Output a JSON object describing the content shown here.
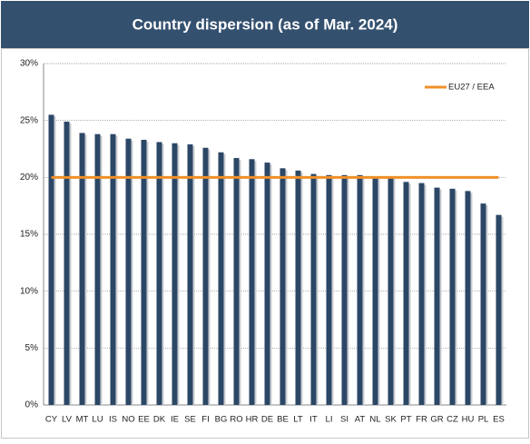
{
  "chart_data": {
    "type": "bar",
    "title": "Country dispersion (as of Mar. 2024)",
    "categories": [
      "CY",
      "LV",
      "MT",
      "LU",
      "IS",
      "NO",
      "EE",
      "DK",
      "IE",
      "SE",
      "FI",
      "BG",
      "RO",
      "HR",
      "DE",
      "BE",
      "LT",
      "IT",
      "LI",
      "SI",
      "AT",
      "NL",
      "SK",
      "PT",
      "FR",
      "GR",
      "CZ",
      "HU",
      "PL",
      "ES"
    ],
    "series": [
      {
        "name": null,
        "color": "#2c4766",
        "values": [
          25.5,
          24.9,
          23.9,
          23.8,
          23.8,
          23.4,
          23.3,
          23.1,
          23.0,
          22.9,
          22.6,
          22.2,
          21.7,
          21.6,
          21.3,
          20.8,
          20.6,
          20.3,
          20.2,
          20.2,
          20.2,
          20.1,
          20.1,
          19.6,
          19.5,
          19.1,
          19.0,
          18.8,
          17.7,
          16.7
        ]
      },
      {
        "name": "EU27 / EEA",
        "type": "line",
        "color": "#f0902a",
        "values": [
          20,
          20,
          20,
          20,
          20,
          20,
          20,
          20,
          20,
          20,
          20,
          20,
          20,
          20,
          20,
          20,
          20,
          20,
          20,
          20,
          20,
          20,
          20,
          20,
          20,
          20,
          20,
          20,
          20,
          20
        ]
      }
    ],
    "ylim": [
      0,
      30
    ],
    "yticks": [
      {
        "value": 0,
        "label": "0%"
      },
      {
        "value": 5,
        "label": "5%"
      },
      {
        "value": 10,
        "label": "10%"
      },
      {
        "value": 15,
        "label": "15%"
      },
      {
        "value": 20,
        "label": "20%"
      },
      {
        "value": 25,
        "label": "25%"
      },
      {
        "value": 30,
        "label": "30%"
      }
    ],
    "grid": true,
    "legend": "top-right"
  }
}
